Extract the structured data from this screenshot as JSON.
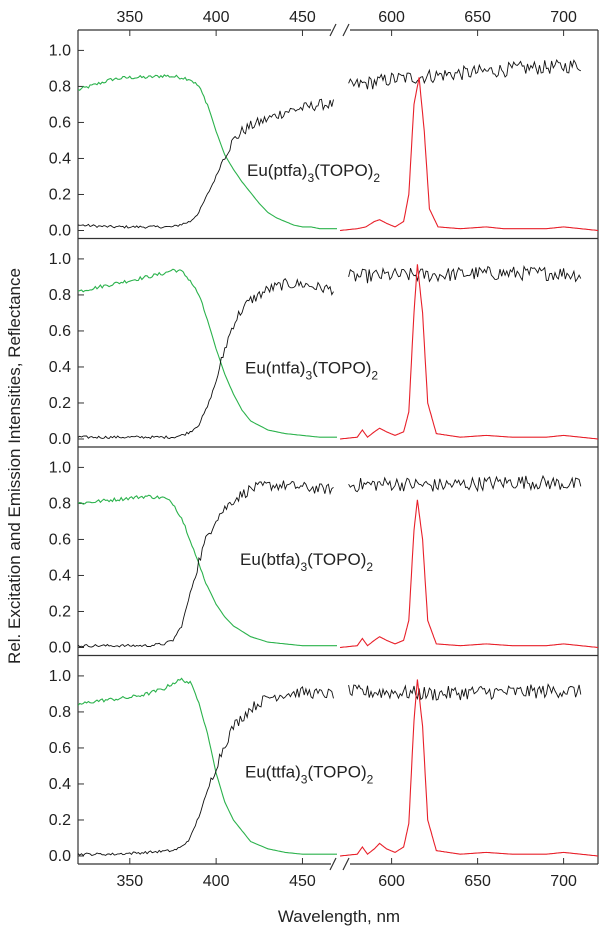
{
  "figure": {
    "xlabel": "Wavelength, nm",
    "ylabel": "Rel. Excitation and Emission Intensities, Reflectance",
    "x_ticks_left": [
      350,
      400,
      450
    ],
    "x_ticks_right": [
      600,
      650,
      700
    ],
    "y_ticks": [
      "0.0",
      "0.2",
      "0.4",
      "0.6",
      "0.8",
      "1.0"
    ],
    "colors": {
      "excitation": "#2bb24c",
      "emission": "#e8202a",
      "reflectance": "#111111",
      "frame": "#333333"
    }
  },
  "chart_data": [
    {
      "type": "line",
      "label": {
        "base": "Eu(ptfa)",
        "sub1": "3",
        "mid": "(TOPO)",
        "sub2": "2"
      },
      "x_break": {
        "left_range": [
          320,
          470
        ],
        "right_range": [
          570,
          720
        ]
      },
      "ylim": [
        0,
        1.08
      ],
      "excitation": {
        "x": [
          320,
          330,
          340,
          350,
          360,
          370,
          380,
          385,
          390,
          395,
          400,
          405,
          410,
          415,
          420,
          425,
          430,
          435,
          440,
          445,
          450,
          455,
          460,
          465,
          470
        ],
        "y": [
          0.78,
          0.81,
          0.84,
          0.85,
          0.85,
          0.86,
          0.85,
          0.84,
          0.8,
          0.7,
          0.55,
          0.42,
          0.34,
          0.27,
          0.21,
          0.15,
          0.1,
          0.07,
          0.05,
          0.03,
          0.02,
          0.02,
          0.01,
          0.01,
          0.01
        ]
      },
      "reflectance_left": {
        "x": [
          320,
          340,
          360,
          375,
          385,
          390,
          395,
          400,
          405,
          410,
          415,
          420,
          430,
          440,
          450,
          460,
          468
        ],
        "y": [
          0.03,
          0.02,
          0.02,
          0.02,
          0.05,
          0.1,
          0.2,
          0.3,
          0.42,
          0.5,
          0.55,
          0.58,
          0.62,
          0.66,
          0.68,
          0.7,
          0.7
        ]
      },
      "reflectance_right": {
        "x": [
          575,
          600,
          625,
          650,
          675,
          700,
          710
        ],
        "y": [
          0.8,
          0.84,
          0.86,
          0.88,
          0.9,
          0.91,
          0.92
        ]
      },
      "emission": {
        "x": [
          570,
          580,
          585,
          590,
          593,
          597,
          602,
          607,
          610,
          613,
          616,
          619,
          622,
          627,
          640,
          655,
          665,
          690,
          700,
          710,
          720
        ],
        "y": [
          0.0,
          0.01,
          0.02,
          0.05,
          0.06,
          0.04,
          0.02,
          0.05,
          0.2,
          0.7,
          0.85,
          0.55,
          0.12,
          0.02,
          0.01,
          0.02,
          0.01,
          0.01,
          0.02,
          0.01,
          0.0
        ]
      }
    },
    {
      "type": "line",
      "label": {
        "base": "Eu(ntfa)",
        "sub1": "3",
        "mid": "(TOPO)",
        "sub2": "2"
      },
      "x_break": {
        "left_range": [
          320,
          470
        ],
        "right_range": [
          570,
          720
        ]
      },
      "ylim": [
        0,
        1.08
      ],
      "excitation": {
        "x": [
          320,
          330,
          340,
          350,
          360,
          370,
          375,
          380,
          385,
          390,
          395,
          400,
          405,
          410,
          415,
          420,
          430,
          440,
          450,
          460,
          470
        ],
        "y": [
          0.82,
          0.84,
          0.86,
          0.88,
          0.9,
          0.92,
          0.94,
          0.93,
          0.88,
          0.8,
          0.66,
          0.5,
          0.36,
          0.25,
          0.16,
          0.1,
          0.05,
          0.03,
          0.02,
          0.01,
          0.01
        ]
      },
      "reflectance_left": {
        "x": [
          320,
          340,
          360,
          375,
          380,
          385,
          390,
          395,
          400,
          405,
          410,
          415,
          420,
          430,
          440,
          450,
          460,
          468
        ],
        "y": [
          0.01,
          0.01,
          0.01,
          0.01,
          0.02,
          0.04,
          0.08,
          0.18,
          0.32,
          0.5,
          0.64,
          0.72,
          0.77,
          0.83,
          0.86,
          0.86,
          0.84,
          0.83
        ]
      },
      "reflectance_right": {
        "x": [
          575,
          600,
          625,
          650,
          675,
          700,
          710
        ],
        "y": [
          0.9,
          0.91,
          0.91,
          0.92,
          0.92,
          0.92,
          0.91
        ]
      },
      "emission": {
        "x": [
          570,
          580,
          583,
          586,
          590,
          593,
          597,
          602,
          607,
          610,
          613,
          615,
          618,
          621,
          626,
          640,
          655,
          670,
          690,
          700,
          710,
          720
        ],
        "y": [
          0.0,
          0.01,
          0.05,
          0.01,
          0.04,
          0.06,
          0.04,
          0.02,
          0.04,
          0.15,
          0.7,
          0.97,
          0.7,
          0.2,
          0.03,
          0.01,
          0.02,
          0.01,
          0.01,
          0.02,
          0.01,
          0.0
        ]
      }
    },
    {
      "type": "line",
      "label": {
        "base": "Eu(btfa)",
        "sub1": "3",
        "mid": "(TOPO)",
        "sub2": "2"
      },
      "x_break": {
        "left_range": [
          320,
          470
        ],
        "right_range": [
          570,
          720
        ]
      },
      "ylim": [
        0,
        1.08
      ],
      "excitation": {
        "x": [
          320,
          330,
          340,
          350,
          360,
          370,
          375,
          380,
          385,
          390,
          395,
          400,
          405,
          410,
          420,
          430,
          440,
          450,
          460,
          470
        ],
        "y": [
          0.8,
          0.81,
          0.82,
          0.83,
          0.84,
          0.83,
          0.8,
          0.72,
          0.6,
          0.46,
          0.34,
          0.24,
          0.17,
          0.12,
          0.06,
          0.03,
          0.02,
          0.01,
          0.01,
          0.01
        ]
      },
      "reflectance_left": {
        "x": [
          320,
          340,
          360,
          370,
          375,
          380,
          385,
          390,
          395,
          400,
          410,
          420,
          430,
          440,
          450,
          460,
          468
        ],
        "y": [
          0.01,
          0.01,
          0.01,
          0.02,
          0.04,
          0.12,
          0.3,
          0.48,
          0.62,
          0.72,
          0.82,
          0.88,
          0.9,
          0.9,
          0.89,
          0.88,
          0.88
        ]
      },
      "reflectance_right": {
        "x": [
          575,
          600,
          625,
          650,
          675,
          700,
          710
        ],
        "y": [
          0.9,
          0.91,
          0.9,
          0.91,
          0.92,
          0.91,
          0.9
        ]
      },
      "emission": {
        "x": [
          570,
          580,
          583,
          586,
          590,
          593,
          597,
          602,
          607,
          610,
          613,
          615,
          618,
          621,
          626,
          640,
          655,
          670,
          690,
          700,
          710,
          720
        ],
        "y": [
          0.0,
          0.01,
          0.05,
          0.01,
          0.04,
          0.06,
          0.04,
          0.02,
          0.04,
          0.15,
          0.65,
          0.82,
          0.6,
          0.15,
          0.02,
          0.01,
          0.02,
          0.01,
          0.01,
          0.02,
          0.01,
          0.0
        ]
      }
    },
    {
      "type": "line",
      "label": {
        "base": "Eu(ttfa)",
        "sub1": "3",
        "mid": "(TOPO)",
        "sub2": "2"
      },
      "x_break": {
        "left_range": [
          320,
          470
        ],
        "right_range": [
          570,
          720
        ]
      },
      "ylim": [
        0,
        1.08
      ],
      "excitation": {
        "x": [
          320,
          330,
          340,
          350,
          360,
          370,
          375,
          380,
          385,
          390,
          395,
          400,
          405,
          410,
          420,
          430,
          440,
          450,
          460,
          470
        ],
        "y": [
          0.84,
          0.86,
          0.87,
          0.88,
          0.9,
          0.93,
          0.96,
          0.98,
          0.96,
          0.86,
          0.68,
          0.46,
          0.3,
          0.2,
          0.08,
          0.04,
          0.02,
          0.01,
          0.01,
          0.01
        ]
      },
      "reflectance_left": {
        "x": [
          320,
          340,
          360,
          375,
          380,
          385,
          390,
          395,
          400,
          405,
          410,
          420,
          430,
          440,
          450,
          460,
          468
        ],
        "y": [
          0.01,
          0.01,
          0.02,
          0.03,
          0.05,
          0.1,
          0.22,
          0.36,
          0.5,
          0.62,
          0.72,
          0.82,
          0.88,
          0.9,
          0.91,
          0.9,
          0.9
        ]
      },
      "reflectance_right": {
        "x": [
          575,
          600,
          625,
          650,
          675,
          700,
          710
        ],
        "y": [
          0.91,
          0.91,
          0.9,
          0.91,
          0.91,
          0.92,
          0.91
        ]
      },
      "emission": {
        "x": [
          570,
          580,
          583,
          586,
          590,
          593,
          597,
          602,
          607,
          610,
          613,
          615,
          618,
          621,
          626,
          640,
          655,
          670,
          690,
          700,
          710,
          720
        ],
        "y": [
          0.0,
          0.01,
          0.05,
          0.01,
          0.04,
          0.07,
          0.04,
          0.02,
          0.05,
          0.18,
          0.75,
          0.98,
          0.72,
          0.2,
          0.03,
          0.01,
          0.02,
          0.01,
          0.01,
          0.02,
          0.01,
          0.0
        ]
      }
    }
  ]
}
